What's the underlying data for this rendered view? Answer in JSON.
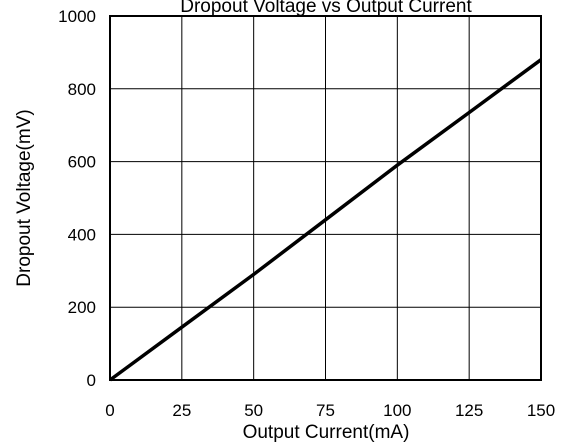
{
  "chart_data": {
    "type": "line",
    "title": "Dropout Voltage vs Output Current",
    "xlabel": "Output Current(mA)",
    "ylabel": "Dropout Voltage(mV)",
    "xlim": [
      0,
      150
    ],
    "ylim": [
      0,
      1000
    ],
    "x_ticks": [
      0,
      25,
      50,
      75,
      100,
      125,
      150
    ],
    "y_ticks": [
      0,
      200,
      400,
      600,
      800,
      1000
    ],
    "x_tick_labels": [
      "0",
      "25",
      "50",
      "75",
      "100",
      "125",
      "150"
    ],
    "y_tick_labels": [
      "0",
      "200",
      "400",
      "600",
      "800",
      "1000"
    ],
    "grid": true,
    "legend": "none",
    "series": [
      {
        "x": [
          0,
          25,
          50,
          75,
          100,
          125,
          150
        ],
        "y": [
          0,
          145,
          290,
          440,
          590,
          735,
          880
        ],
        "color": "#000000"
      }
    ]
  }
}
